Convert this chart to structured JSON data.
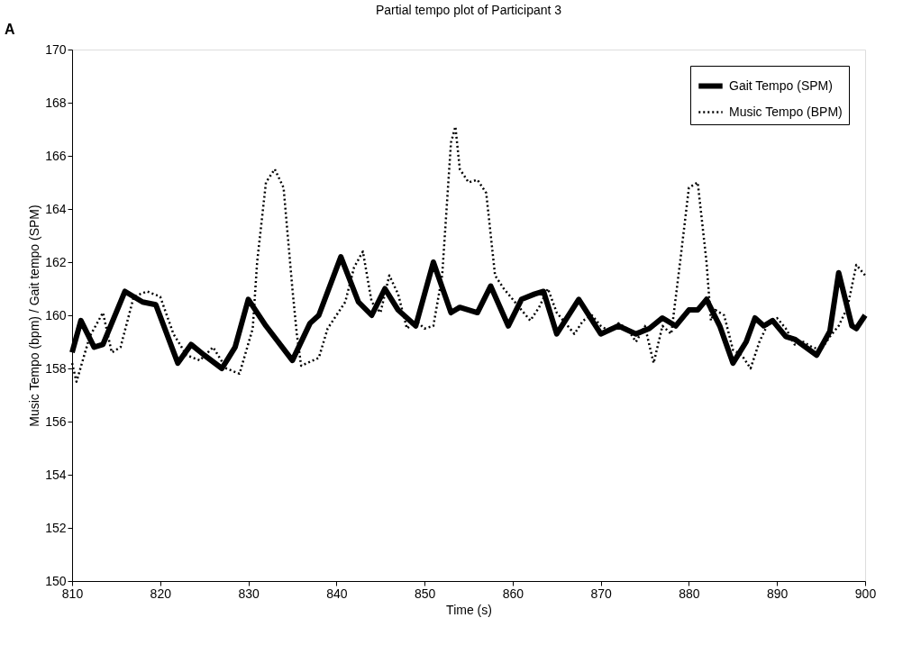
{
  "chart_data": {
    "type": "line",
    "title": "Partial tempo plot of Participant 3",
    "xlabel": "Time (s)",
    "ylabel": "Music Tempo (bpm) / Gait tempo (SPM)",
    "annotations": [
      "A"
    ],
    "xlim": [
      810,
      900
    ],
    "xticks": [
      810,
      820,
      830,
      840,
      850,
      860,
      870,
      880,
      890,
      900
    ],
    "ylim": [
      150,
      170
    ],
    "yticks": [
      150,
      152,
      154,
      156,
      158,
      160,
      162,
      164,
      166,
      168,
      170
    ],
    "grid": false,
    "legend": "top right",
    "marker": "none",
    "series": [
      {
        "name": "Gait Tempo (SPM)",
        "color": "#000000",
        "line_style": "solid",
        "x": [
          810,
          811,
          812.5,
          813.5,
          816,
          818,
          819.5,
          822,
          823.5,
          825,
          827,
          828.5,
          830,
          832,
          835,
          837,
          838,
          840.5,
          842.5,
          844,
          845.5,
          847,
          849,
          851,
          853,
          854,
          856,
          857.5,
          859.5,
          861,
          862.5,
          863.5,
          865,
          867.5,
          870,
          872,
          874,
          875.5,
          877,
          878.5,
          880,
          881,
          882,
          883.5,
          885,
          886.5,
          887.5,
          888.5,
          889.5,
          891,
          892,
          894.5,
          896,
          897,
          898.5,
          899,
          900
        ],
        "values": [
          158.6,
          159.8,
          158.8,
          158.9,
          160.9,
          160.5,
          160.4,
          158.2,
          158.9,
          158.5,
          158.0,
          158.8,
          160.6,
          159.6,
          158.3,
          159.7,
          160.0,
          162.2,
          160.5,
          160.0,
          161.0,
          160.2,
          159.6,
          162.0,
          160.1,
          160.3,
          160.1,
          161.1,
          159.6,
          160.6,
          160.8,
          160.9,
          159.3,
          160.6,
          159.3,
          159.6,
          159.3,
          159.5,
          159.9,
          159.6,
          160.2,
          160.2,
          160.6,
          159.6,
          158.2,
          159.0,
          159.9,
          159.6,
          159.8,
          159.2,
          159.1,
          158.5,
          159.4,
          161.6,
          159.6,
          159.5,
          160.0
        ]
      },
      {
        "name": "Music Tempo (BPM)",
        "color": "#000000",
        "line_style": "dotted",
        "x": [
          810,
          810.5,
          812,
          813.5,
          814.5,
          815.5,
          817,
          818.5,
          820,
          821.5,
          823,
          824.5,
          826,
          827.5,
          829,
          830.5,
          831,
          832,
          833,
          834,
          835,
          835.5,
          836,
          838,
          839,
          840,
          841,
          842,
          843,
          844,
          845,
          846,
          847,
          848,
          849,
          850,
          851,
          852,
          852.5,
          853,
          853.5,
          854,
          855,
          856,
          857,
          858,
          859,
          860,
          861,
          862,
          863,
          864,
          865,
          866,
          867,
          868,
          869,
          870,
          871,
          872,
          873,
          874,
          875,
          876,
          877,
          878,
          879,
          880,
          881,
          882,
          882.5,
          883,
          884,
          885,
          886,
          887,
          888,
          889,
          890,
          891,
          892,
          893,
          894,
          895,
          896,
          897,
          898,
          899,
          900
        ],
        "values": [
          158.2,
          157.5,
          159.2,
          160.1,
          158.6,
          158.8,
          160.7,
          160.9,
          160.7,
          159.3,
          158.5,
          158.3,
          158.8,
          158.0,
          157.8,
          159.5,
          162.0,
          165.0,
          165.5,
          164.8,
          161.0,
          159.3,
          158.1,
          158.4,
          159.5,
          160.0,
          160.5,
          161.8,
          162.4,
          160.5,
          160.1,
          161.5,
          160.8,
          159.5,
          159.8,
          159.5,
          159.6,
          161.5,
          164.0,
          166.5,
          167.1,
          165.5,
          165.0,
          165.1,
          164.6,
          161.5,
          161.0,
          160.6,
          160.2,
          159.8,
          160.3,
          161.0,
          160.1,
          159.7,
          159.3,
          159.8,
          160.0,
          159.6,
          159.4,
          159.7,
          159.5,
          159.0,
          159.6,
          158.2,
          159.6,
          159.3,
          162.0,
          164.8,
          165.0,
          162.0,
          159.8,
          160.2,
          160.0,
          158.7,
          158.5,
          158.0,
          159.0,
          159.7,
          159.9,
          159.5,
          158.9,
          159.0,
          158.8,
          158.7,
          159.2,
          159.6,
          160.3,
          161.9,
          161.5
        ]
      }
    ]
  }
}
